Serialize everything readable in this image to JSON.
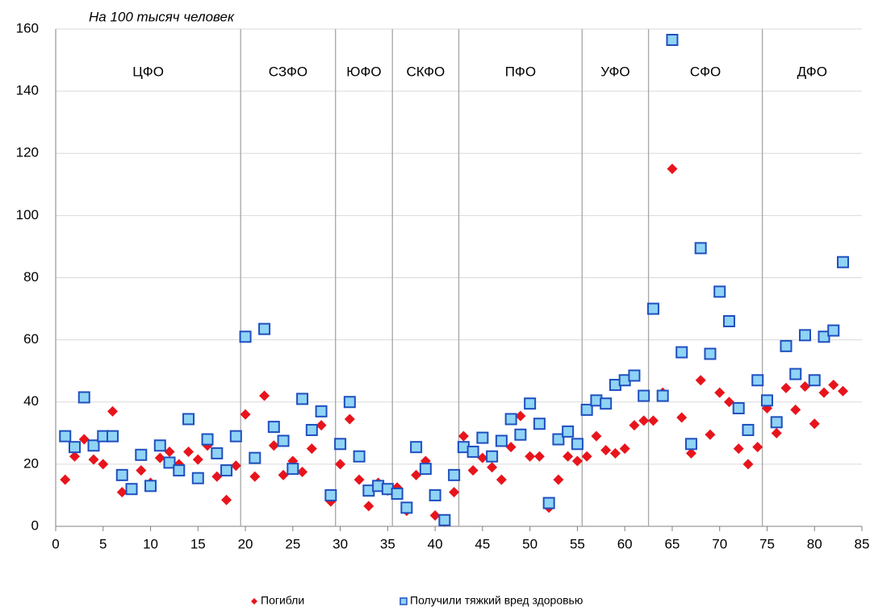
{
  "chart_data": {
    "type": "scatter",
    "annotation": "На 100 тысяч человек",
    "x": [
      1,
      2,
      3,
      4,
      5,
      6,
      7,
      8,
      9,
      10,
      11,
      12,
      13,
      14,
      15,
      16,
      17,
      18,
      19,
      20,
      21,
      22,
      23,
      24,
      25,
      26,
      27,
      28,
      29,
      30,
      31,
      32,
      33,
      34,
      35,
      36,
      37,
      38,
      39,
      40,
      41,
      42,
      43,
      44,
      45,
      46,
      47,
      48,
      49,
      50,
      51,
      52,
      53,
      54,
      55,
      56,
      57,
      58,
      59,
      60,
      61,
      62,
      63,
      64,
      65,
      66,
      67,
      68,
      69,
      70,
      71,
      72,
      73,
      74,
      75,
      76,
      77,
      78,
      79,
      80,
      81,
      82,
      83
    ],
    "series": [
      {
        "name": "Погибли",
        "color": "#e8141c",
        "marker": "diamond",
        "values": [
          15,
          22.5,
          28,
          21.5,
          20,
          37,
          11,
          12,
          18,
          14,
          22,
          24,
          20,
          24,
          21.5,
          26,
          16,
          8.5,
          19.5,
          36,
          16,
          42,
          26,
          16.5,
          21,
          17.5,
          25,
          32.5,
          8,
          20,
          34.5,
          15,
          6.5,
          14,
          11.5,
          12.5,
          5,
          16.5,
          21,
          3.5,
          1.5,
          11,
          29,
          18,
          22,
          19,
          15,
          25.5,
          35.5,
          22.5,
          22.5,
          6,
          15,
          22.5,
          21,
          22.5,
          29,
          24.5,
          23.5,
          25,
          32.5,
          34,
          34,
          43,
          115,
          35,
          23.5,
          47,
          29.5,
          43,
          40,
          25,
          20,
          25.5,
          38,
          30,
          44.5,
          37.5,
          45,
          33,
          43,
          45.5,
          43.5
        ]
      },
      {
        "name": "Получили тяжкий вред здоровью",
        "color": "#8fd3f5",
        "edge": "#1f4fbf",
        "marker": "square",
        "values": [
          29,
          25.5,
          41.5,
          26,
          29,
          29,
          16.5,
          12,
          23,
          13,
          26,
          20.5,
          18,
          34.5,
          15.5,
          28,
          23.5,
          18,
          29,
          61,
          22,
          63.5,
          32,
          27.5,
          18.5,
          41,
          31,
          37,
          10,
          26.5,
          40,
          22.5,
          11.5,
          13,
          12,
          10.5,
          6,
          25.5,
          18.5,
          10,
          2,
          16.5,
          25.5,
          24,
          28.5,
          22.5,
          27.5,
          34.5,
          29.5,
          39.5,
          33,
          7.5,
          28,
          30.5,
          26.5,
          37.5,
          40.5,
          39.5,
          45.5,
          47,
          48.5,
          42,
          70,
          42,
          156.5,
          56,
          26.5,
          89.5,
          55.5,
          75.5,
          66,
          38,
          31,
          47,
          40.5,
          33.5,
          58,
          49,
          61.5,
          47,
          61,
          63,
          85
        ]
      }
    ],
    "regions": [
      "ЦФО",
      "СЗФО",
      "ЮФО",
      "СКФО",
      "ПФО",
      "УФО",
      "СФО",
      "ДФО"
    ],
    "region_dividers": [
      19.5,
      29.5,
      35.5,
      42.5,
      55.5,
      62.5,
      74.5
    ],
    "xlim": [
      0,
      85
    ],
    "xticks": [
      0,
      5,
      10,
      15,
      20,
      25,
      30,
      35,
      40,
      45,
      50,
      55,
      60,
      65,
      70,
      75,
      80,
      85
    ],
    "ylim": [
      0,
      160
    ],
    "yticks": [
      0,
      20,
      40,
      60,
      80,
      100,
      120,
      140,
      160
    ],
    "grid": true,
    "legend": "bottom"
  }
}
